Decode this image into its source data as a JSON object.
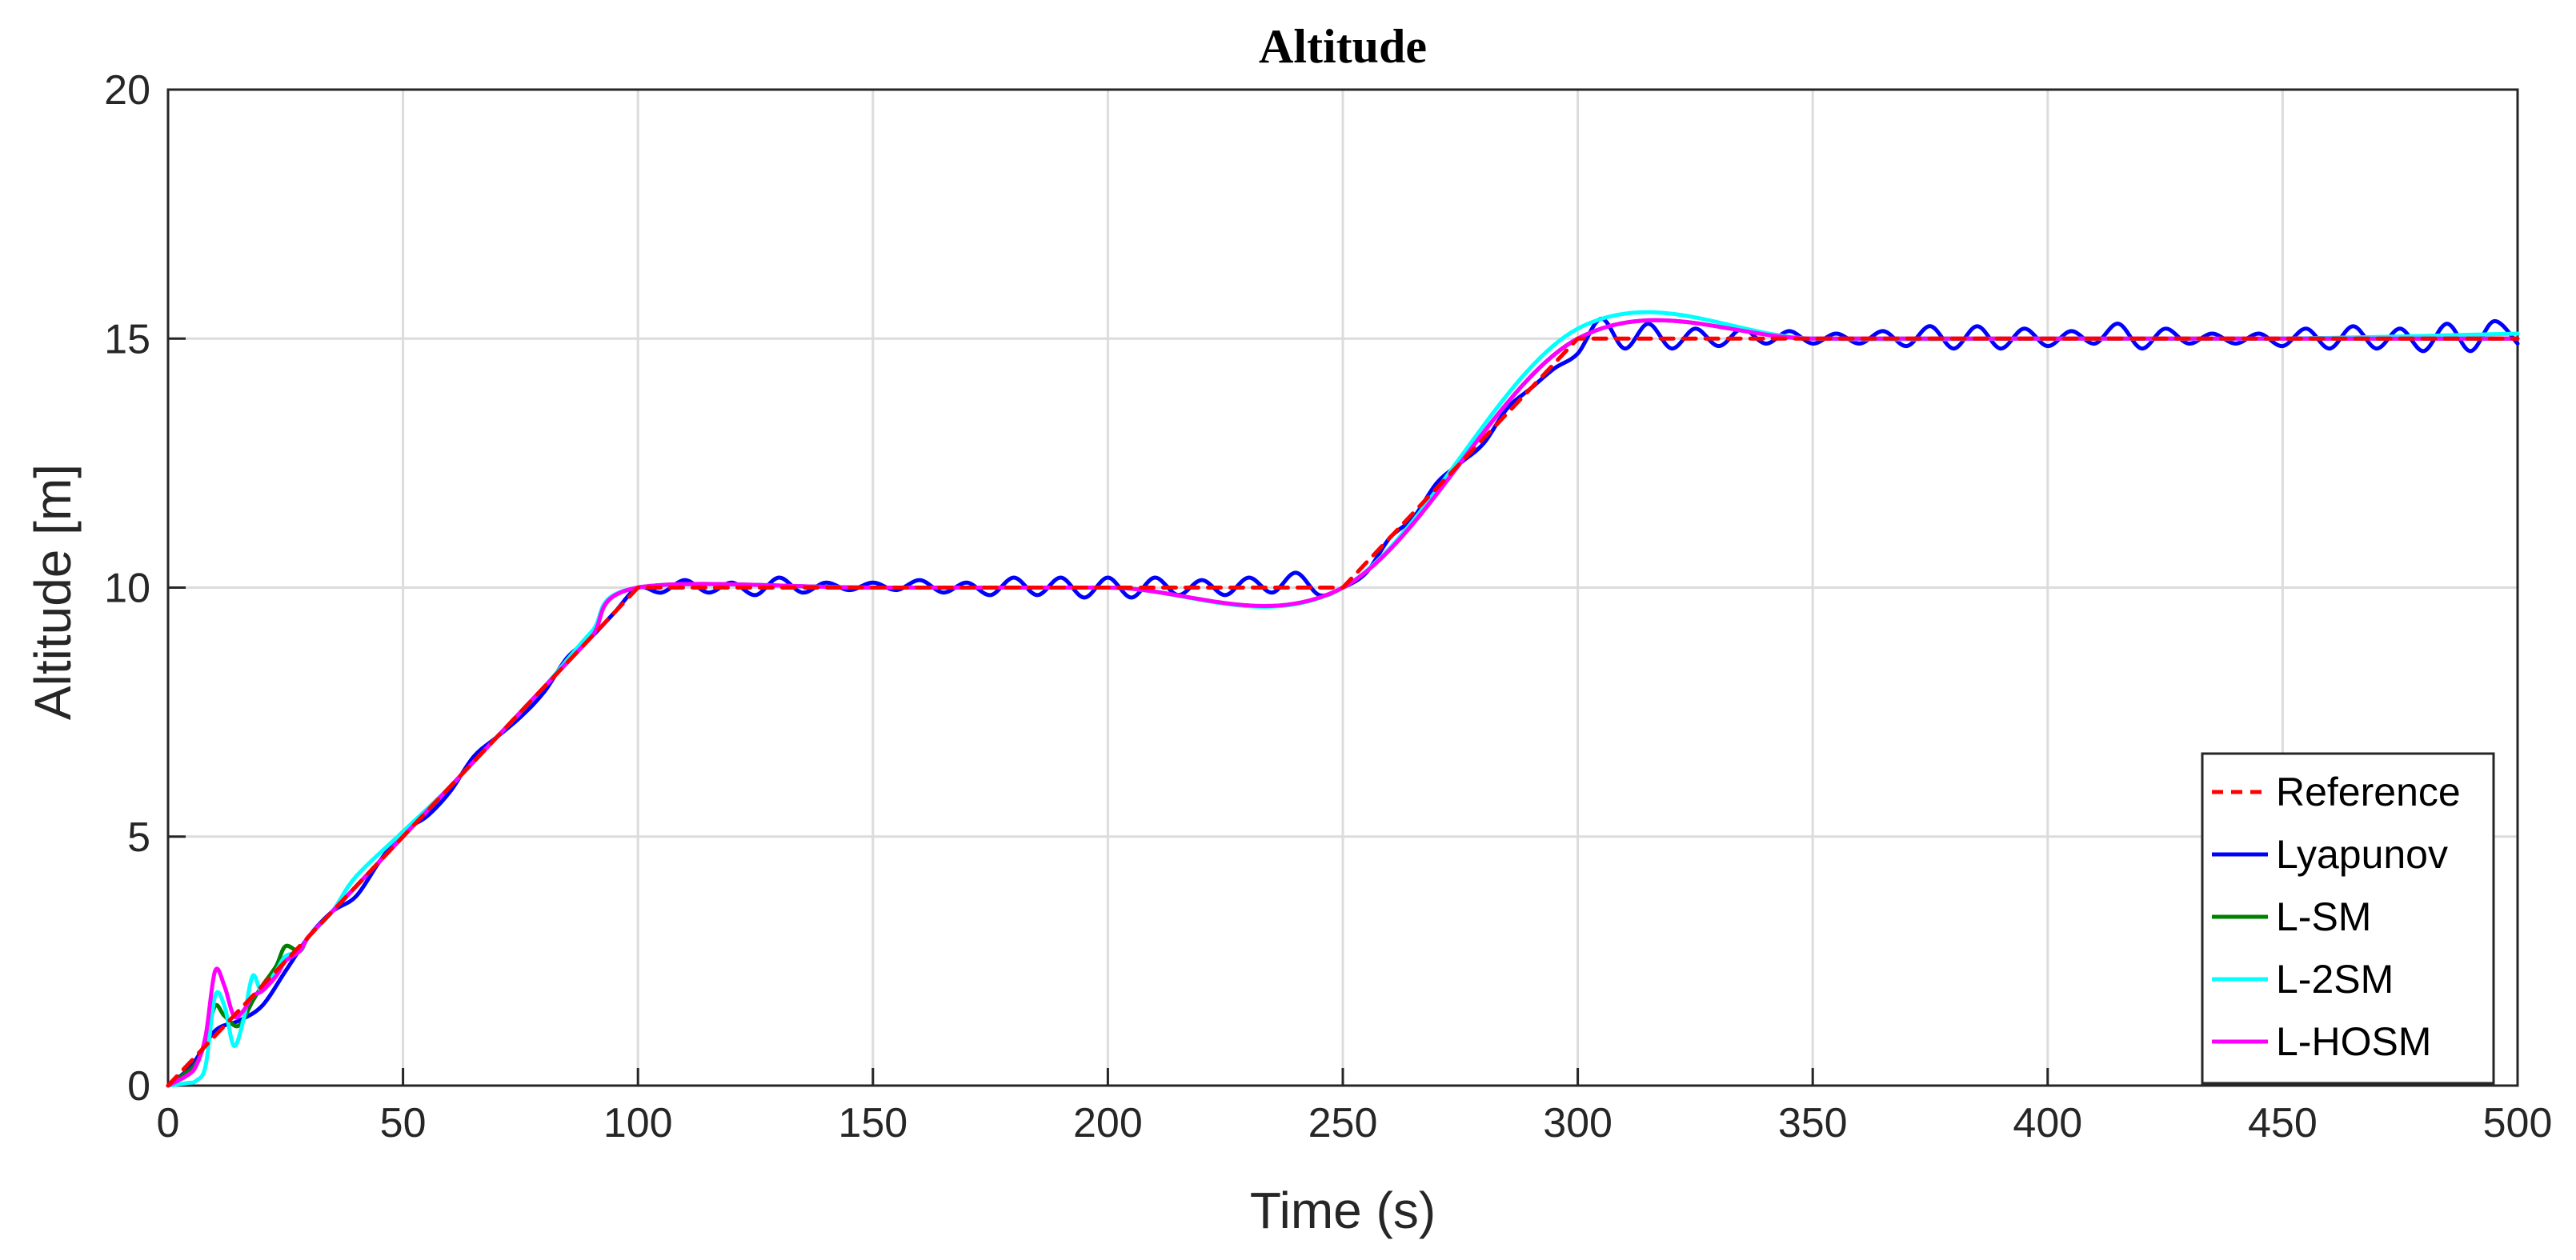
{
  "chart_data": {
    "type": "line",
    "title": "Altitude",
    "xlabel": "Time (s)",
    "ylabel": "Altitude [m]",
    "xlim": [
      0,
      500
    ],
    "ylim": [
      0,
      20
    ],
    "xticks": [
      0,
      50,
      100,
      150,
      200,
      250,
      300,
      350,
      400,
      450,
      500
    ],
    "yticks": [
      0,
      5,
      10,
      15,
      20
    ],
    "grid": true,
    "legend_position": "bottom-right",
    "series": [
      {
        "name": "Reference",
        "color": "#ff0000",
        "dash": "dashed",
        "x": [
          0,
          100,
          250,
          300,
          500
        ],
        "y": [
          0,
          10,
          10,
          15,
          15
        ]
      },
      {
        "name": "Lyapunov",
        "color": "#0000ff",
        "x": [
          0,
          5,
          10,
          15,
          20,
          25,
          30,
          35,
          40,
          45,
          50,
          55,
          60,
          65,
          70,
          75,
          80,
          85,
          90,
          95,
          100,
          105,
          110,
          115,
          120,
          125,
          130,
          135,
          140,
          145,
          150,
          155,
          160,
          165,
          170,
          175,
          180,
          185,
          190,
          195,
          200,
          205,
          210,
          215,
          220,
          225,
          230,
          235,
          240,
          245,
          250,
          255,
          260,
          265,
          270,
          275,
          280,
          285,
          290,
          295,
          300,
          305,
          310,
          315,
          320,
          325,
          330,
          335,
          340,
          345,
          350,
          355,
          360,
          365,
          370,
          375,
          380,
          385,
          390,
          395,
          400,
          405,
          410,
          415,
          420,
          425,
          430,
          435,
          440,
          445,
          450,
          455,
          460,
          465,
          470,
          475,
          480,
          485,
          490,
          495,
          500
        ],
        "y": [
          0,
          0.4,
          1.1,
          1.3,
          1.6,
          2.3,
          3.0,
          3.5,
          3.8,
          4.5,
          5.1,
          5.4,
          5.9,
          6.6,
          7.0,
          7.4,
          7.9,
          8.6,
          9.0,
          9.5,
          10.0,
          9.9,
          10.15,
          9.9,
          10.1,
          9.85,
          10.2,
          9.9,
          10.1,
          9.95,
          10.1,
          9.95,
          10.15,
          9.9,
          10.1,
          9.85,
          10.2,
          9.85,
          10.2,
          9.8,
          10.2,
          9.8,
          10.2,
          9.85,
          10.15,
          9.85,
          10.2,
          9.9,
          10.3,
          9.85,
          10.0,
          10.3,
          11.0,
          11.4,
          12.1,
          12.5,
          12.9,
          13.6,
          14.0,
          14.4,
          14.7,
          15.4,
          14.8,
          15.3,
          14.8,
          15.2,
          14.85,
          15.2,
          14.9,
          15.15,
          14.9,
          15.1,
          14.9,
          15.15,
          14.85,
          15.25,
          14.8,
          15.25,
          14.8,
          15.2,
          14.85,
          15.15,
          14.9,
          15.3,
          14.8,
          15.2,
          14.9,
          15.1,
          14.9,
          15.1,
          14.85,
          15.2,
          14.8,
          15.25,
          14.8,
          15.2,
          14.75,
          15.3,
          14.75,
          15.35,
          14.9
        ]
      },
      {
        "name": "L-SM",
        "color": "#008000",
        "x": [
          0,
          3,
          6,
          8,
          10,
          12,
          15,
          18,
          20,
          23,
          25,
          28,
          30,
          35,
          40,
          50,
          60,
          70,
          80,
          90,
          100,
          150,
          200,
          250,
          300,
          350,
          400,
          450,
          500
        ],
        "y": [
          0,
          0.2,
          0.45,
          0.9,
          1.6,
          1.4,
          1.2,
          1.7,
          2.0,
          2.4,
          2.8,
          2.7,
          3.0,
          3.5,
          4.0,
          5.0,
          6.0,
          7.0,
          8.0,
          9.0,
          10.0,
          10.0,
          10.0,
          10.0,
          15.0,
          15.0,
          15.0,
          15.0,
          15.0
        ]
      },
      {
        "name": "L-2SM",
        "color": "#00ffff",
        "x": [
          0,
          4,
          6,
          8,
          10,
          12,
          14,
          16,
          18,
          20,
          23,
          25,
          28,
          30,
          35,
          40,
          50,
          60,
          70,
          80,
          90,
          100,
          150,
          200,
          250,
          300,
          350,
          400,
          450,
          500
        ],
        "y": [
          0,
          0.05,
          0.1,
          0.4,
          1.8,
          1.6,
          0.8,
          1.3,
          2.2,
          1.9,
          2.3,
          2.6,
          2.7,
          3.0,
          3.5,
          4.2,
          5.1,
          6.0,
          7.0,
          8.0,
          9.1,
          10.0,
          10.0,
          10.0,
          10.0,
          15.2,
          15.0,
          15.0,
          15.0,
          15.1
        ]
      },
      {
        "name": "L-HOSM",
        "color": "#ff00ff",
        "x": [
          0,
          4,
          6,
          8,
          10,
          12,
          14,
          16,
          18,
          20,
          23,
          25,
          28,
          30,
          35,
          40,
          50,
          60,
          70,
          80,
          90,
          100,
          150,
          200,
          250,
          300,
          350,
          400,
          450,
          500
        ],
        "y": [
          0,
          0.2,
          0.4,
          1.0,
          2.3,
          2.0,
          1.4,
          1.5,
          1.8,
          1.9,
          2.2,
          2.5,
          2.7,
          3.0,
          3.5,
          4.0,
          5.0,
          6.0,
          7.0,
          8.0,
          9.0,
          10.0,
          10.0,
          10.0,
          10.0,
          15.0,
          15.0,
          15.0,
          15.0,
          15.0
        ]
      }
    ]
  }
}
